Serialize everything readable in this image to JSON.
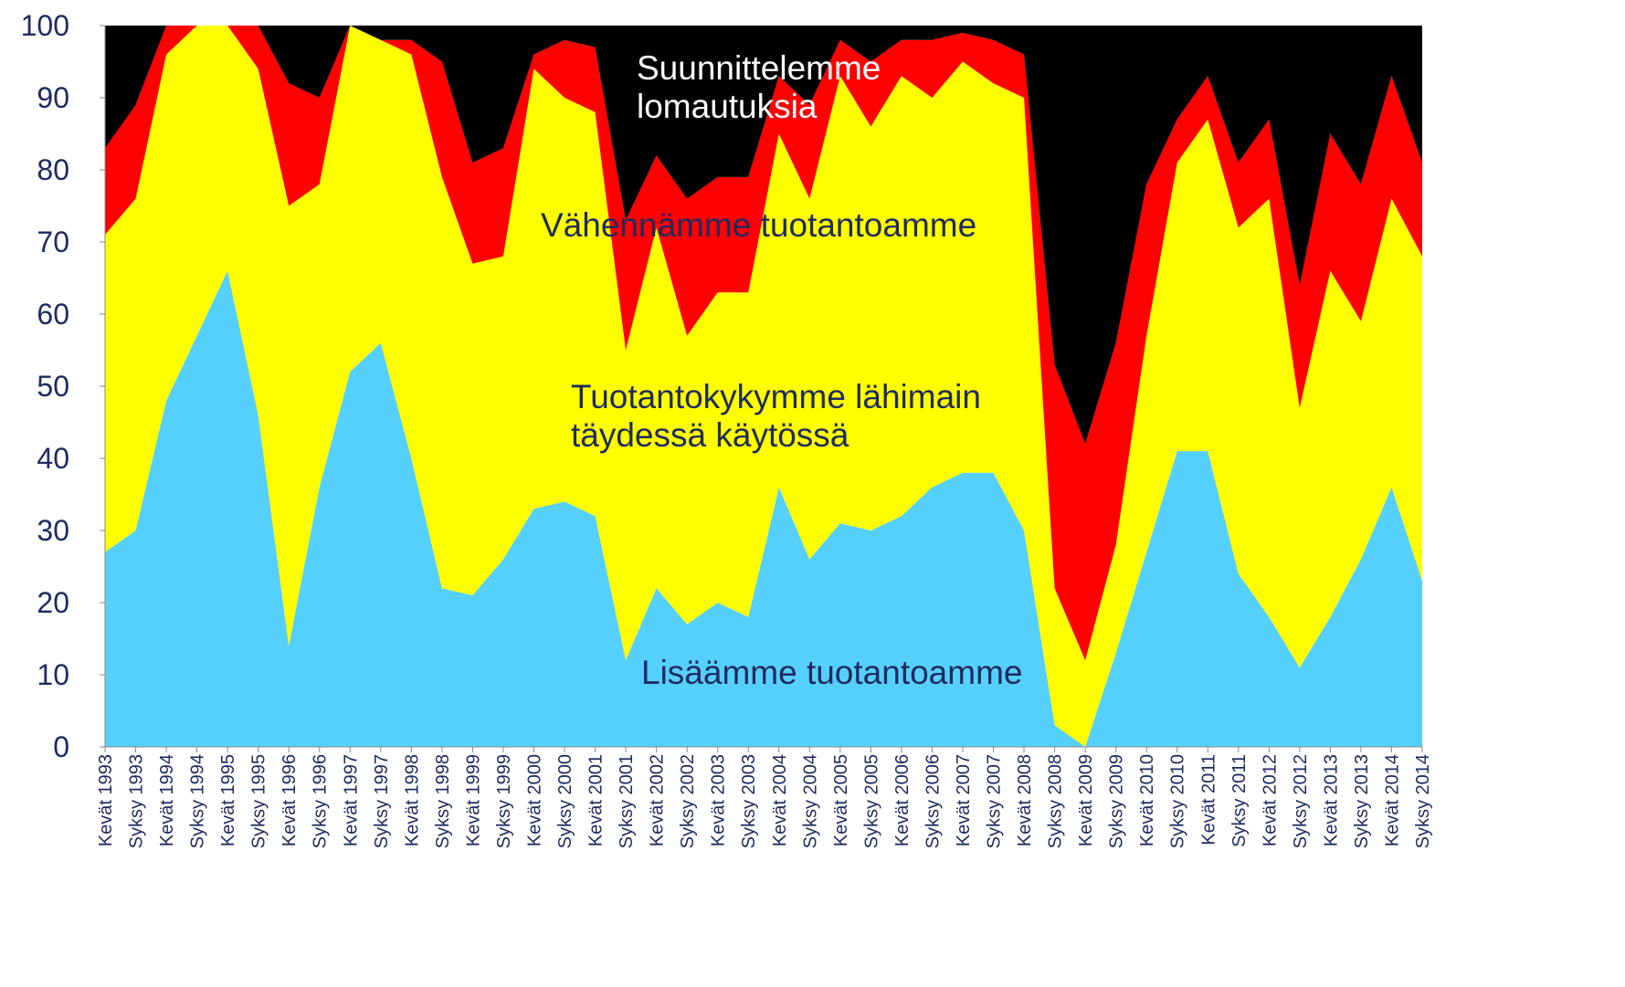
{
  "chart_data": {
    "type": "stacked_area",
    "categories": [
      "Kevät 1993",
      "Syksy 1993",
      "Kevät 1994",
      "Syksy 1994",
      "Kevät 1995",
      "Syksy 1995",
      "Kevät 1996",
      "Syksy 1996",
      "Kevät 1997",
      "Syksy 1997",
      "Kevät 1998",
      "Syksy 1998",
      "Kevät 1999",
      "Syksy 1999",
      "Kevät 2000",
      "Syksy 2000",
      "Kevät 2001",
      "Syksy 2001",
      "Kevät 2002",
      "Syksy 2002",
      "Kevät 2003",
      "Syksy 2003",
      "Kevät 2004",
      "Syksy 2004",
      "Kevät 2005",
      "Syksy 2005",
      "Kevät 2006",
      "Syksy 2006",
      "Kevät 2007",
      "Syksy 2007",
      "Kevät 2008",
      "Syksy 2008",
      "Kevät 2009",
      "Syksy 2009",
      "Kevät 2010",
      "Syksy 2010",
      "Kevät 2011",
      "Syksy 2011",
      "Kevät 2012",
      "Syksy 2012",
      "Kevät 2013",
      "Syksy 2013",
      "Kevät 2014",
      "Syksy 2014"
    ],
    "series": [
      {
        "name": "Lisäämme tuotantoamme",
        "color": "#55d0fc",
        "values": [
          27,
          30,
          48,
          57,
          66,
          46,
          14,
          36,
          52,
          56,
          40,
          22,
          21,
          26,
          33,
          34,
          32,
          12,
          22,
          17,
          20,
          18,
          36,
          26,
          31,
          30,
          32,
          36,
          38,
          38,
          30,
          3,
          0,
          13,
          27,
          41,
          41,
          24,
          18,
          11,
          18,
          26,
          36,
          23
        ]
      },
      {
        "name": "Tuotantokykymme lähimain täydessä käytössä",
        "color": "#ffff00",
        "values": [
          44,
          46,
          48,
          43,
          34,
          48,
          61,
          42,
          48,
          42,
          56,
          57,
          46,
          42,
          61,
          56,
          56,
          43,
          50,
          40,
          43,
          45,
          49,
          50,
          62,
          56,
          61,
          54,
          57,
          54,
          60,
          19,
          12,
          15,
          30,
          40,
          46,
          48,
          58,
          36,
          48,
          33,
          40,
          45
        ]
      },
      {
        "name": "Vähennämme tuotantoamme",
        "color": "#ff0000",
        "values": [
          12,
          13,
          4,
          0,
          0,
          6,
          17,
          12,
          0,
          0,
          2,
          16,
          14,
          15,
          2,
          8,
          9,
          18,
          10,
          19,
          16,
          16,
          8,
          13,
          5,
          9,
          5,
          8,
          4,
          6,
          6,
          31,
          30,
          28,
          21,
          6,
          6,
          9,
          11,
          17,
          19,
          19,
          17,
          13
        ]
      },
      {
        "name": "Suunnittelemme lomautuksia",
        "color": "#000000",
        "values": [
          17,
          11,
          0,
          0,
          0,
          0,
          8,
          10,
          0,
          2,
          2,
          5,
          19,
          17,
          4,
          2,
          3,
          27,
          18,
          24,
          21,
          21,
          7,
          11,
          2,
          5,
          2,
          2,
          1,
          2,
          4,
          47,
          58,
          44,
          22,
          13,
          7,
          19,
          13,
          36,
          15,
          22,
          7,
          19
        ]
      }
    ],
    "ylim": [
      0,
      100
    ],
    "yticks": [
      0,
      10,
      20,
      30,
      40,
      50,
      60,
      70,
      80,
      90,
      100
    ]
  }
}
